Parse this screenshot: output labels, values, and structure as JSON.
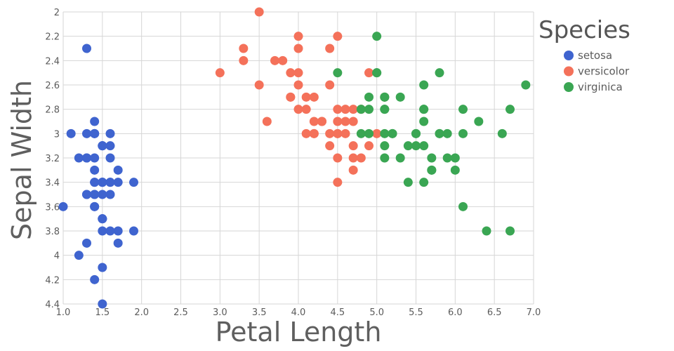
{
  "chart_data": {
    "type": "scatter",
    "xlabel": "Petal Length",
    "ylabel": "Sepal Width",
    "xlim": [
      1.0,
      7.0
    ],
    "ylim": [
      2.0,
      4.4
    ],
    "y_inverted": true,
    "x_ticks": [
      "1.0",
      "1.5",
      "2.0",
      "2.5",
      "3.0",
      "3.5",
      "4.0",
      "4.5",
      "5.0",
      "5.5",
      "6.0",
      "6.5",
      "7.0"
    ],
    "y_ticks": [
      "2",
      "2.2",
      "2.4",
      "2.6",
      "2.8",
      "3",
      "3.2",
      "3.4",
      "3.6",
      "3.8",
      "4",
      "4.2",
      "4.4"
    ],
    "grid": true,
    "legend": {
      "title": "Species",
      "position": "top-right"
    },
    "series": [
      {
        "name": "setosa",
        "color": "#3f64cf",
        "points": [
          [
            1.4,
            3.5
          ],
          [
            1.4,
            3.0
          ],
          [
            1.3,
            3.2
          ],
          [
            1.5,
            3.1
          ],
          [
            1.4,
            3.6
          ],
          [
            1.7,
            3.9
          ],
          [
            1.4,
            3.4
          ],
          [
            1.5,
            3.4
          ],
          [
            1.4,
            2.9
          ],
          [
            1.5,
            3.1
          ],
          [
            1.5,
            3.7
          ],
          [
            1.6,
            3.4
          ],
          [
            1.4,
            3.0
          ],
          [
            1.1,
            3.0
          ],
          [
            1.2,
            4.0
          ],
          [
            1.5,
            4.4
          ],
          [
            1.3,
            3.9
          ],
          [
            1.4,
            3.5
          ],
          [
            1.7,
            3.8
          ],
          [
            1.5,
            3.8
          ],
          [
            1.7,
            3.4
          ],
          [
            1.5,
            3.7
          ],
          [
            1.0,
            3.6
          ],
          [
            1.7,
            3.3
          ],
          [
            1.9,
            3.4
          ],
          [
            1.6,
            3.0
          ],
          [
            1.6,
            3.4
          ],
          [
            1.5,
            3.5
          ],
          [
            1.4,
            3.4
          ],
          [
            1.6,
            3.2
          ],
          [
            1.6,
            3.1
          ],
          [
            1.5,
            3.4
          ],
          [
            1.5,
            4.1
          ],
          [
            1.4,
            4.2
          ],
          [
            1.5,
            3.1
          ],
          [
            1.2,
            3.2
          ],
          [
            1.3,
            3.5
          ],
          [
            1.4,
            3.6
          ],
          [
            1.3,
            3.0
          ],
          [
            1.5,
            3.4
          ],
          [
            1.3,
            3.5
          ],
          [
            1.3,
            2.3
          ],
          [
            1.3,
            3.2
          ],
          [
            1.6,
            3.5
          ],
          [
            1.9,
            3.8
          ],
          [
            1.4,
            3.0
          ],
          [
            1.6,
            3.8
          ],
          [
            1.4,
            3.2
          ],
          [
            1.5,
            3.7
          ],
          [
            1.4,
            3.3
          ]
        ]
      },
      {
        "name": "versicolor",
        "color": "#f4715a",
        "points": [
          [
            4.7,
            3.2
          ],
          [
            4.5,
            3.2
          ],
          [
            4.9,
            3.1
          ],
          [
            4.0,
            2.3
          ],
          [
            4.6,
            2.8
          ],
          [
            4.5,
            2.8
          ],
          [
            4.7,
            3.3
          ],
          [
            3.3,
            2.4
          ],
          [
            4.6,
            2.9
          ],
          [
            3.9,
            2.7
          ],
          [
            3.5,
            2.0
          ],
          [
            4.2,
            3.0
          ],
          [
            4.0,
            2.2
          ],
          [
            4.7,
            2.9
          ],
          [
            3.6,
            2.9
          ],
          [
            4.4,
            3.1
          ],
          [
            4.5,
            3.0
          ],
          [
            4.1,
            2.7
          ],
          [
            4.5,
            2.2
          ],
          [
            3.9,
            2.5
          ],
          [
            4.8,
            3.2
          ],
          [
            4.0,
            2.8
          ],
          [
            4.9,
            2.5
          ],
          [
            4.7,
            2.8
          ],
          [
            4.3,
            2.9
          ],
          [
            4.4,
            3.0
          ],
          [
            4.8,
            2.8
          ],
          [
            5.0,
            3.0
          ],
          [
            4.5,
            2.9
          ],
          [
            3.5,
            2.6
          ],
          [
            3.8,
            2.4
          ],
          [
            3.7,
            2.4
          ],
          [
            3.9,
            2.7
          ],
          [
            5.1,
            2.7
          ],
          [
            4.5,
            3.0
          ],
          [
            4.5,
            3.4
          ],
          [
            4.7,
            3.1
          ],
          [
            4.4,
            2.3
          ],
          [
            4.1,
            3.0
          ],
          [
            4.0,
            2.5
          ],
          [
            4.4,
            2.6
          ],
          [
            4.6,
            3.0
          ],
          [
            4.0,
            2.6
          ],
          [
            3.3,
            2.3
          ],
          [
            4.2,
            2.7
          ],
          [
            4.2,
            3.0
          ],
          [
            4.2,
            2.9
          ],
          [
            4.3,
            2.9
          ],
          [
            3.0,
            2.5
          ],
          [
            4.1,
            2.8
          ]
        ]
      },
      {
        "name": "virginica",
        "color": "#3aa653",
        "points": [
          [
            6.0,
            3.3
          ],
          [
            5.1,
            2.7
          ],
          [
            5.9,
            3.0
          ],
          [
            5.6,
            2.9
          ],
          [
            5.8,
            3.0
          ],
          [
            6.6,
            3.0
          ],
          [
            4.5,
            2.5
          ],
          [
            6.3,
            2.9
          ],
          [
            5.8,
            2.5
          ],
          [
            6.1,
            3.6
          ],
          [
            5.1,
            3.2
          ],
          [
            5.3,
            2.7
          ],
          [
            5.5,
            3.0
          ],
          [
            5.0,
            2.5
          ],
          [
            5.1,
            2.8
          ],
          [
            5.3,
            3.2
          ],
          [
            5.5,
            3.0
          ],
          [
            6.7,
            3.8
          ],
          [
            6.9,
            2.6
          ],
          [
            5.0,
            2.2
          ],
          [
            5.7,
            3.2
          ],
          [
            4.9,
            2.8
          ],
          [
            6.7,
            2.8
          ],
          [
            4.9,
            2.7
          ],
          [
            5.7,
            3.3
          ],
          [
            6.0,
            3.2
          ],
          [
            4.8,
            2.8
          ],
          [
            4.9,
            3.0
          ],
          [
            5.6,
            2.8
          ],
          [
            5.8,
            3.0
          ],
          [
            6.1,
            2.8
          ],
          [
            6.4,
            3.8
          ],
          [
            5.6,
            2.8
          ],
          [
            5.1,
            2.8
          ],
          [
            5.6,
            2.6
          ],
          [
            6.1,
            3.0
          ],
          [
            5.6,
            3.4
          ],
          [
            5.5,
            3.1
          ],
          [
            4.8,
            3.0
          ],
          [
            5.4,
            3.1
          ],
          [
            5.6,
            3.1
          ],
          [
            5.1,
            3.1
          ],
          [
            5.1,
            2.7
          ],
          [
            5.9,
            3.2
          ],
          [
            5.7,
            3.3
          ],
          [
            5.2,
            3.0
          ],
          [
            5.0,
            2.5
          ],
          [
            5.2,
            3.0
          ],
          [
            5.4,
            3.4
          ],
          [
            5.1,
            3.0
          ]
        ]
      }
    ]
  }
}
